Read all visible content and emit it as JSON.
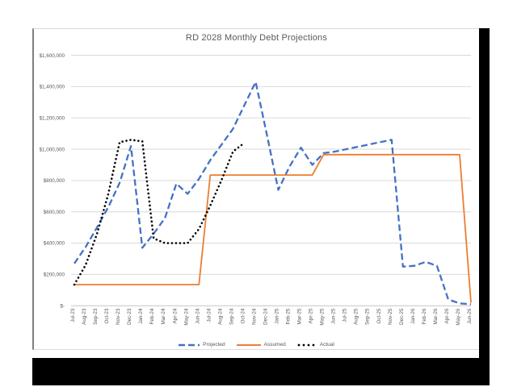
{
  "chart_data": {
    "type": "line",
    "title": "RD 2028 Monthly Debt Projections",
    "xlabel": "",
    "ylabel": "",
    "ylim": [
      0,
      1600000
    ],
    "y_tick_interval": 200000,
    "grid": true,
    "legend_position": "bottom",
    "y_tick_labels": [
      "$-",
      "$200,000",
      "$400,000",
      "$600,000",
      "$800,000",
      "$1,000,000",
      "$1,200,000",
      "$1,400,000",
      "$1,600,000"
    ],
    "categories": [
      "Jul-23",
      "Aug-23",
      "Sep-23",
      "Oct-23",
      "Nov-23",
      "Dec-23",
      "Jan-24",
      "Feb-24",
      "Mar-24",
      "Apr-24",
      "May-24",
      "Jun-24",
      "Jul-24",
      "Aug-24",
      "Sep-24",
      "Oct-24",
      "Nov-24",
      "Dec-24",
      "Jan-25",
      "Feb-25",
      "Mar-25",
      "Apr-25",
      "May-25",
      "Jun-25",
      "Jul-25",
      "Aug-25",
      "Sep-25",
      "Oct-25",
      "Nov-25",
      "Dec-25",
      "Jan-26",
      "Feb-26",
      "Mar-26",
      "Apr-26",
      "May-26",
      "Jun-26"
    ],
    "series": [
      {
        "name": "Projected",
        "color": "#4472C4",
        "style": "dashed",
        "values": [
          270000,
          375000,
          500000,
          630000,
          785000,
          1020000,
          370000,
          460000,
          560000,
          780000,
          715000,
          810000,
          930000,
          1030000,
          1130000,
          1280000,
          1430000,
          1090000,
          740000,
          890000,
          1010000,
          900000,
          975000,
          985000,
          1000000,
          1015000,
          1030000,
          1045000,
          1060000,
          250000,
          255000,
          280000,
          255000,
          40000,
          15000,
          10000
        ]
      },
      {
        "name": "Assumed",
        "color": "#ED7D31",
        "style": "solid",
        "values": [
          135000,
          135000,
          135000,
          135000,
          135000,
          135000,
          135000,
          135000,
          135000,
          135000,
          135000,
          135000,
          835000,
          835000,
          835000,
          835000,
          835000,
          835000,
          835000,
          835000,
          835000,
          835000,
          965000,
          965000,
          965000,
          965000,
          965000,
          965000,
          965000,
          965000,
          965000,
          965000,
          965000,
          965000,
          965000,
          20000
        ]
      },
      {
        "name": "Actual",
        "color": "#000000",
        "style": "dotted",
        "values": [
          135000,
          260000,
          460000,
          715000,
          1045000,
          1060000,
          1050000,
          430000,
          400000,
          400000,
          400000,
          490000,
          640000,
          805000,
          985000,
          1040000
        ]
      }
    ]
  }
}
